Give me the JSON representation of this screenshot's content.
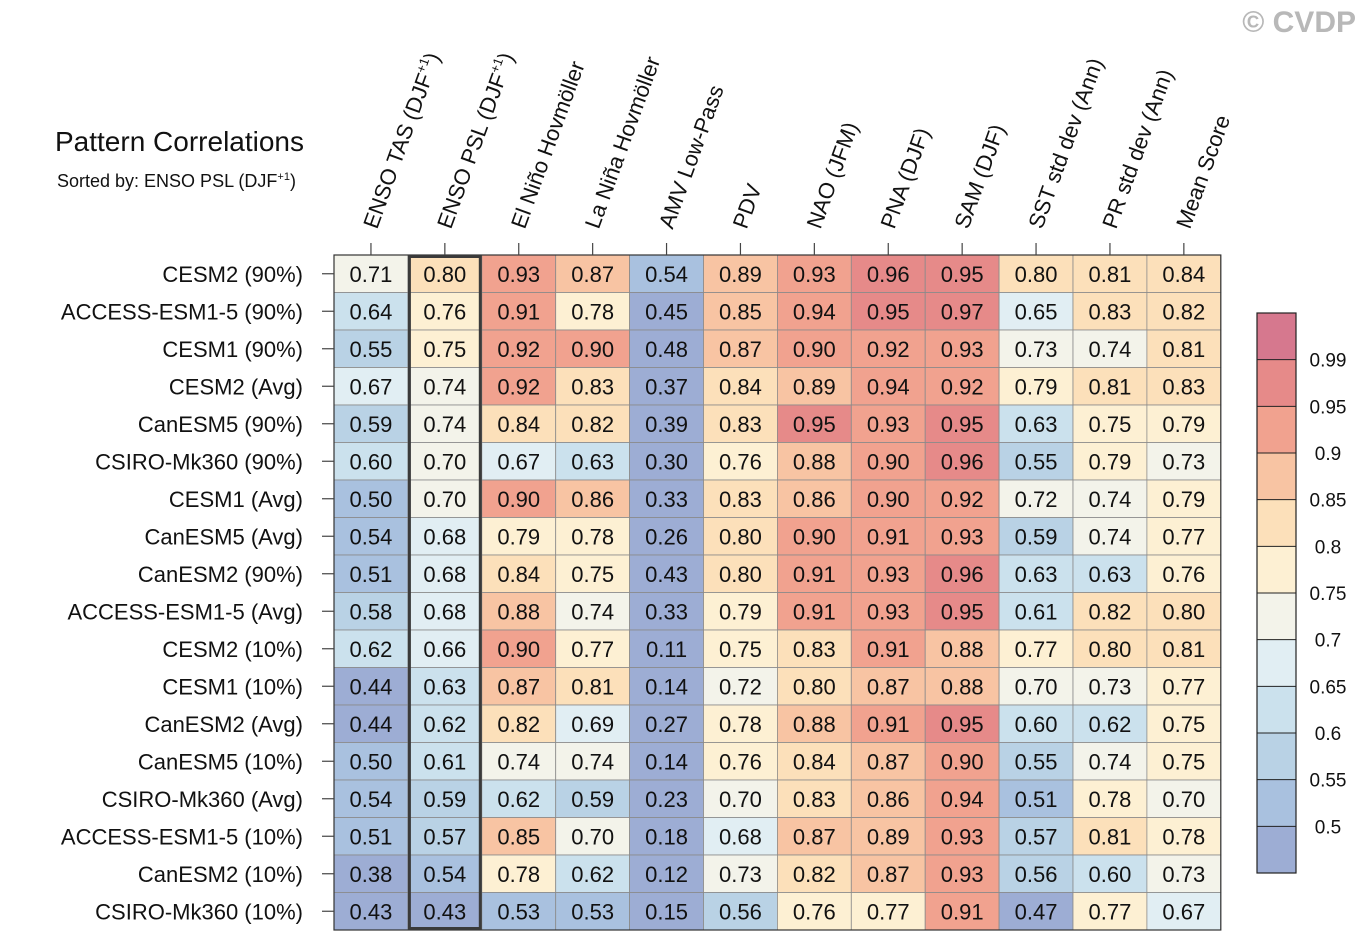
{
  "watermark": "© CVDP",
  "chart_data": {
    "type": "heatmap",
    "title": "Pattern Correlations",
    "subtitle_prefix": "Sorted by: ENSO PSL (DJF",
    "subtitle_sup": "+1",
    "subtitle_suffix": ")",
    "highlighted_column": 1,
    "columns": [
      {
        "label": "ENSO TAS (DJF",
        "sup": "+1",
        "suffix": ")"
      },
      {
        "label": "ENSO PSL (DJF",
        "sup": "+1",
        "suffix": ")"
      },
      {
        "label": "El Niño Hovmöller",
        "sup": "",
        "suffix": ""
      },
      {
        "label": "La Niña Hovmöller",
        "sup": "",
        "suffix": ""
      },
      {
        "label": "AMV Low-Pass",
        "sup": "",
        "suffix": ""
      },
      {
        "label": "PDV",
        "sup": "",
        "suffix": ""
      },
      {
        "label": "NAO (JFM)",
        "sup": "",
        "suffix": ""
      },
      {
        "label": "PNA (DJF)",
        "sup": "",
        "suffix": ""
      },
      {
        "label": "SAM (DJF)",
        "sup": "",
        "suffix": ""
      },
      {
        "label": "SST std dev (Ann)",
        "sup": "",
        "suffix": ""
      },
      {
        "label": "PR std dev (Ann)",
        "sup": "",
        "suffix": ""
      },
      {
        "label": "Mean Score",
        "sup": "",
        "suffix": ""
      }
    ],
    "rows": [
      {
        "name": "CESM2 (90%)",
        "values": [
          "0.71",
          "0.80",
          "0.93",
          "0.87",
          "0.54",
          "0.89",
          "0.93",
          "0.96",
          "0.95",
          "0.80",
          "0.81",
          "0.84"
        ]
      },
      {
        "name": "ACCESS-ESM1-5 (90%)",
        "values": [
          "0.64",
          "0.76",
          "0.91",
          "0.78",
          "0.45",
          "0.85",
          "0.94",
          "0.95",
          "0.97",
          "0.65",
          "0.83",
          "0.82"
        ]
      },
      {
        "name": "CESM1 (90%)",
        "values": [
          "0.55",
          "0.75",
          "0.92",
          "0.90",
          "0.48",
          "0.87",
          "0.90",
          "0.92",
          "0.93",
          "0.73",
          "0.74",
          "0.81"
        ]
      },
      {
        "name": "CESM2 (Avg)",
        "values": [
          "0.67",
          "0.74",
          "0.92",
          "0.83",
          "0.37",
          "0.84",
          "0.89",
          "0.94",
          "0.92",
          "0.79",
          "0.81",
          "0.83"
        ]
      },
      {
        "name": "CanESM5 (90%)",
        "values": [
          "0.59",
          "0.74",
          "0.84",
          "0.82",
          "0.39",
          "0.83",
          "0.95",
          "0.93",
          "0.95",
          "0.63",
          "0.75",
          "0.79"
        ]
      },
      {
        "name": "CSIRO-Mk360 (90%)",
        "values": [
          "0.60",
          "0.70",
          "0.67",
          "0.63",
          "0.30",
          "0.76",
          "0.88",
          "0.90",
          "0.96",
          "0.55",
          "0.79",
          "0.73"
        ]
      },
      {
        "name": "CESM1 (Avg)",
        "values": [
          "0.50",
          "0.70",
          "0.90",
          "0.86",
          "0.33",
          "0.83",
          "0.86",
          "0.90",
          "0.92",
          "0.72",
          "0.74",
          "0.79"
        ]
      },
      {
        "name": "CanESM5 (Avg)",
        "values": [
          "0.54",
          "0.68",
          "0.79",
          "0.78",
          "0.26",
          "0.80",
          "0.90",
          "0.91",
          "0.93",
          "0.59",
          "0.74",
          "0.77"
        ]
      },
      {
        "name": "CanESM2 (90%)",
        "values": [
          "0.51",
          "0.68",
          "0.84",
          "0.75",
          "0.43",
          "0.80",
          "0.91",
          "0.93",
          "0.96",
          "0.63",
          "0.63",
          "0.76"
        ]
      },
      {
        "name": "ACCESS-ESM1-5 (Avg)",
        "values": [
          "0.58",
          "0.68",
          "0.88",
          "0.74",
          "0.33",
          "0.79",
          "0.91",
          "0.93",
          "0.95",
          "0.61",
          "0.82",
          "0.80"
        ]
      },
      {
        "name": "CESM2 (10%)",
        "values": [
          "0.62",
          "0.66",
          "0.90",
          "0.77",
          "0.11",
          "0.75",
          "0.83",
          "0.91",
          "0.88",
          "0.77",
          "0.80",
          "0.81"
        ]
      },
      {
        "name": "CESM1 (10%)",
        "values": [
          "0.44",
          "0.63",
          "0.87",
          "0.81",
          "0.14",
          "0.72",
          "0.80",
          "0.87",
          "0.88",
          "0.70",
          "0.73",
          "0.77"
        ]
      },
      {
        "name": "CanESM2 (Avg)",
        "values": [
          "0.44",
          "0.62",
          "0.82",
          "0.69",
          "0.27",
          "0.78",
          "0.88",
          "0.91",
          "0.95",
          "0.60",
          "0.62",
          "0.75"
        ]
      },
      {
        "name": "CanESM5 (10%)",
        "values": [
          "0.50",
          "0.61",
          "0.74",
          "0.74",
          "0.14",
          "0.76",
          "0.84",
          "0.87",
          "0.90",
          "0.55",
          "0.74",
          "0.75"
        ]
      },
      {
        "name": "CSIRO-Mk360 (Avg)",
        "values": [
          "0.54",
          "0.59",
          "0.62",
          "0.59",
          "0.23",
          "0.70",
          "0.83",
          "0.86",
          "0.94",
          "0.51",
          "0.78",
          "0.70"
        ]
      },
      {
        "name": "ACCESS-ESM1-5 (10%)",
        "values": [
          "0.51",
          "0.57",
          "0.85",
          "0.70",
          "0.18",
          "0.68",
          "0.87",
          "0.89",
          "0.93",
          "0.57",
          "0.81",
          "0.78"
        ]
      },
      {
        "name": "CanESM2 (10%)",
        "values": [
          "0.38",
          "0.54",
          "0.78",
          "0.62",
          "0.12",
          "0.73",
          "0.82",
          "0.87",
          "0.93",
          "0.56",
          "0.60",
          "0.73"
        ]
      },
      {
        "name": "CSIRO-Mk360 (10%)",
        "values": [
          "0.43",
          "0.43",
          "0.53",
          "0.53",
          "0.15",
          "0.56",
          "0.76",
          "0.77",
          "0.91",
          "0.47",
          "0.77",
          "0.67"
        ]
      }
    ],
    "colorbar": {
      "boundaries": [
        0.5,
        0.55,
        0.6,
        0.65,
        0.7,
        0.75,
        0.8,
        0.85,
        0.9,
        0.95,
        0.99
      ],
      "labels": [
        "0.5",
        "0.55",
        "0.6",
        "0.65",
        "0.7",
        "0.75",
        "0.8",
        "0.85",
        "0.9",
        "0.95",
        "0.99"
      ],
      "colors": [
        "#9dadd4",
        "#a9c1df",
        "#b9d2e5",
        "#cbe1ed",
        "#e1eef3",
        "#f3f3ea",
        "#fdf0d3",
        "#fce0ba",
        "#f8c4a3",
        "#f1a28f",
        "#e68a89",
        "#d6788e"
      ]
    }
  }
}
